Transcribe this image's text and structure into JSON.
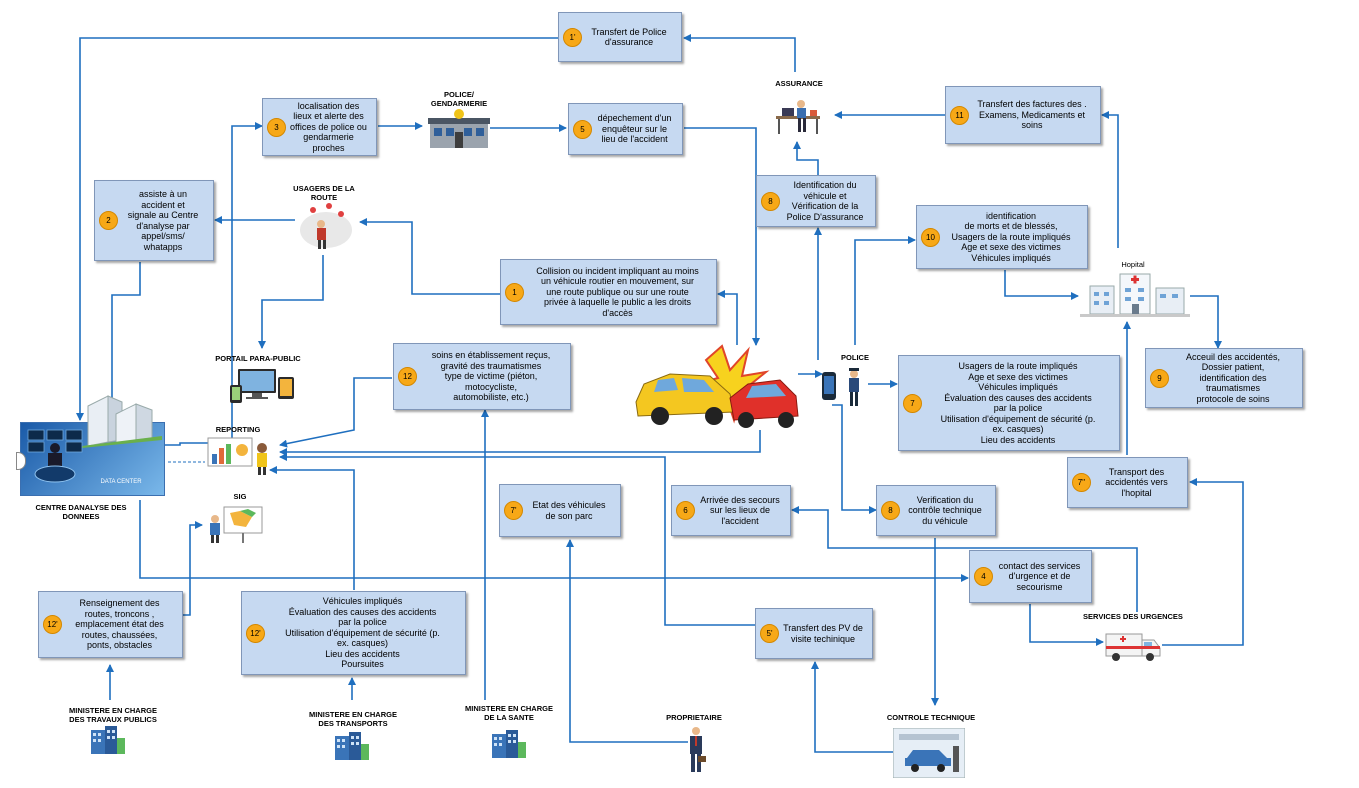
{
  "boxes": {
    "b1p": {
      "num": "1'",
      "text": "Transfert de Police\nd'assurance"
    },
    "b3": {
      "num": "3",
      "text": "localisation des\nlieux et alerte des\noffices de police ou\ngendarmerie\nproches"
    },
    "b5": {
      "num": "5",
      "text": "dépechement d'un\nenquêteur sur le\nlieu de l'accident"
    },
    "b11": {
      "num": "11",
      "text": "Transfert des factures des  .\nExamens, Medicaments et\nsoins"
    },
    "b2": {
      "num": "2",
      "text": "assiste à un\naccident et\nsignale au Centre\nd'analyse par\nappel/sms/\nwhatapps"
    },
    "b8a": {
      "num": "8",
      "text": "Identification du\nvéhicule et\nVérification de la\nPolice D'assurance"
    },
    "b10": {
      "num": "10",
      "text": "identification\nde morts et de blessés,\nUsagers de la route impliqués\nAge et sexe des victimes\nVéhicules impliqués"
    },
    "b1": {
      "num": "1",
      "text": "Collision ou incident impliquant au moins\nun véhicule routier en mouvement, sur\nune route publique ou sur une route\nprivée à laquelle le public a les droits\nd'accès"
    },
    "b12": {
      "num": "12",
      "text": "soins en établissement reçus,\ngravité des traumatismes\ntype de victime (piéton,\nmotocycliste,\nautomobiliste, etc.)"
    },
    "b9": {
      "num": "9",
      "text": "Acceuil des accidentés,\nDossier patient,\nidentification des\ntraumatismes\nprotocole de soins"
    },
    "b7": {
      "num": "7",
      "text": "Usagers de la route impliqués\nAge et sexe des victimes\nVéhicules impliqués\nÉvaluation des causes des accidents\npar la police\nUtilisation d'équipement de sécurité (p.\nex. casques)\nLieu des accidents"
    },
    "b7pp": {
      "num": "7''",
      "text": "Transport des\naccidentés vers\nl'hopital"
    },
    "b7p": {
      "num": "7'",
      "text": "Etat des véhicules\nde son parc"
    },
    "b6": {
      "num": "6",
      "text": "Arrivée des secours\nsur les lieux de\nl'accident"
    },
    "b8b": {
      "num": "8",
      "text": "Verification du\ncontrôle technique\ndu véhicule"
    },
    "b4": {
      "num": "4",
      "text": "contact des services\nd'urgence et de\nsecourisme"
    },
    "b12pp": {
      "num": "12'",
      "text": "Renseignement des\nroutes, troncons ,\nemplacement état des\nroutes, chaussées,\nponts, obstacles"
    },
    "b12p": {
      "num": "12'",
      "text": "Véhicules impliqués\nÉvaluation des causes des accidents\npar la police\nUtilisation d'équipement de sécurité (p.\nex. casques)\nLieu des accidents\nPoursuites"
    },
    "b5p": {
      "num": "5'",
      "text": "Transfert des PV de\nvisite techinique"
    }
  },
  "labels": {
    "assurance": "ASSURANCE",
    "police_gendarmerie": "POLICE/\nGENDARMERIE",
    "usagers": "USAGERS DE LA\nROUTE",
    "hopital": "Hopital",
    "portail": "PORTAIL PARA-PUBLIC",
    "police": "POLICE",
    "reporting": "REPORTING",
    "sig": "SIG",
    "centre": "CENTRE DANALYSE DES\nDONNEES",
    "data_center": "DATA CENTER",
    "services_urgences": "SERVICES DES URGENCES",
    "min_tp": "MINISTERE EN CHARGE\nDES TRAVAUX PUBLICS",
    "min_transports": "MINISTERE EN CHARGE\nDES TRANSPORTS",
    "min_sante": "MINISTERE EN CHARGE\nDE LA SANTE",
    "proprietaire": "PROPRIETAIRE",
    "controle": "CONTROLE TECHNIQUE"
  },
  "colors": {
    "box_fill": "#c6d9f1",
    "box_border": "#8096b8",
    "badge": "#f7a817",
    "arrow": "#1f6fbf"
  },
  "icons": {
    "assurance": "office-worker-icon",
    "police_station": "police-station-icon",
    "usagers": "road-users-icon",
    "hospital": "hospital-icon",
    "portail": "devices-icon",
    "police": "police-officer-icon",
    "reporting": "report-presenter-icon",
    "sig": "map-presenter-icon",
    "data_center": "data-center-icon",
    "ambulance": "ambulance-icon",
    "ministry": "building-icon",
    "owner": "businessman-icon",
    "inspection": "inspection-garage-icon",
    "crash": "car-crash-icon"
  }
}
